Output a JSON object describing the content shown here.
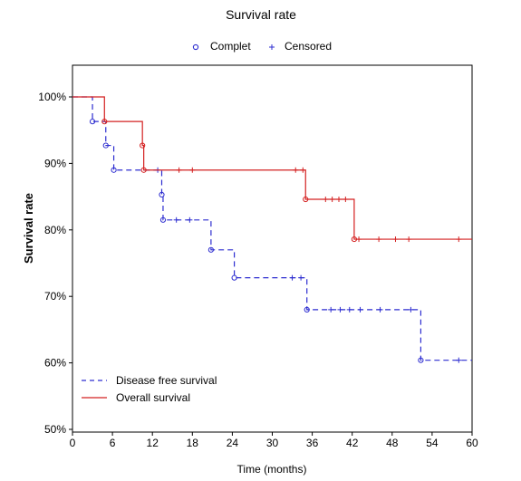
{
  "chart_data": {
    "type": "line",
    "title": "Survival rate",
    "xlabel": "Time (months)",
    "ylabel": "Survival rate",
    "xlim": [
      0,
      60
    ],
    "ylim": [
      50,
      100
    ],
    "x_ticks": [
      "0",
      "6",
      "12",
      "18",
      "24",
      "30",
      "36",
      "42",
      "48",
      "54",
      "60"
    ],
    "y_ticks": [
      "50%",
      "60%",
      "70%",
      "80%",
      "90%",
      "100%"
    ],
    "grid": false,
    "marker_legend": {
      "placement": "top",
      "items": [
        {
          "label": "Complet",
          "marker": "circle"
        },
        {
          "label": "Censored",
          "marker": "plus"
        }
      ]
    },
    "legend_placement": "bottom-left",
    "series": [
      {
        "name": "Disease free survival",
        "style": "dashed",
        "color": "#2d2dd0",
        "steps": [
          [
            0,
            100
          ],
          [
            3,
            96.3
          ],
          [
            5,
            92.7
          ],
          [
            6.2,
            89
          ],
          [
            13.4,
            85.3
          ],
          [
            13.6,
            81.5
          ],
          [
            20.8,
            77
          ],
          [
            24.3,
            72.8
          ],
          [
            35.2,
            68
          ],
          [
            52.3,
            60.4
          ],
          [
            60,
            60.4
          ]
        ],
        "events": [
          [
            3,
            96.3
          ],
          [
            5,
            92.7
          ],
          [
            6.2,
            89
          ],
          [
            13.4,
            85.3
          ],
          [
            13.6,
            81.5
          ],
          [
            20.8,
            77
          ],
          [
            24.3,
            72.8
          ],
          [
            35.2,
            68
          ],
          [
            52.3,
            60.4
          ]
        ],
        "censored": [
          [
            12.8,
            89
          ],
          [
            15.6,
            81.5
          ],
          [
            17.6,
            81.5
          ],
          [
            33,
            72.8
          ],
          [
            34.3,
            72.8
          ],
          [
            38.8,
            68
          ],
          [
            40.2,
            68
          ],
          [
            41.6,
            68
          ],
          [
            43.2,
            68
          ],
          [
            46.2,
            68
          ],
          [
            50.8,
            68
          ],
          [
            58,
            60.4
          ]
        ]
      },
      {
        "name": "Overall survival",
        "style": "solid",
        "color": "#d42020",
        "steps": [
          [
            0,
            100
          ],
          [
            4.8,
            96.3
          ],
          [
            10.5,
            92.7
          ],
          [
            10.7,
            89
          ],
          [
            35,
            84.6
          ],
          [
            42.3,
            78.6
          ],
          [
            60,
            78.6
          ]
        ],
        "events": [
          [
            4.8,
            96.3
          ],
          [
            10.5,
            92.7
          ],
          [
            10.7,
            89
          ],
          [
            35,
            84.6
          ],
          [
            42.3,
            78.6
          ]
        ],
        "censored": [
          [
            16,
            89
          ],
          [
            18,
            89
          ],
          [
            33.5,
            89
          ],
          [
            34.6,
            89
          ],
          [
            38,
            84.6
          ],
          [
            39,
            84.6
          ],
          [
            40,
            84.6
          ],
          [
            41,
            84.6
          ],
          [
            43,
            78.6
          ],
          [
            46,
            78.6
          ],
          [
            48.5,
            78.6
          ],
          [
            50.5,
            78.6
          ],
          [
            58,
            78.6
          ]
        ]
      }
    ]
  }
}
